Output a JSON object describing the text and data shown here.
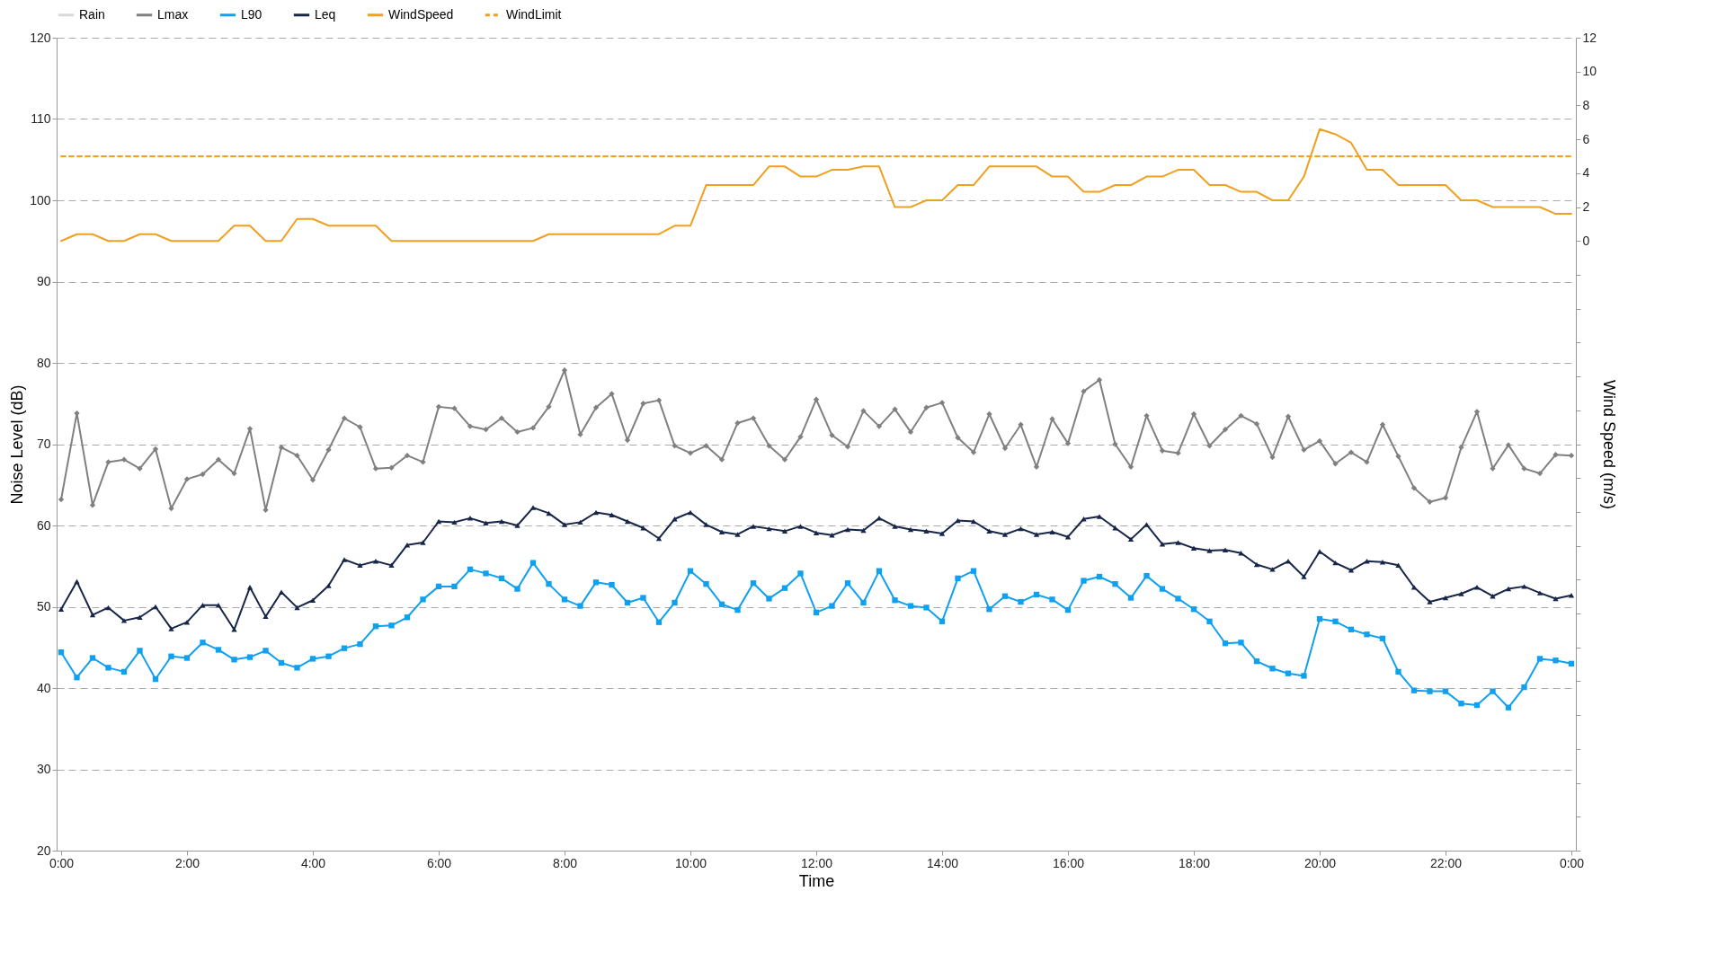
{
  "chart_data": {
    "type": "line",
    "xlabel": "Time",
    "ylabel": "Noise Level (dB)",
    "y2label": "Wind Speed (m/s)",
    "x": [
      0,
      0.25,
      0.5,
      0.75,
      1,
      1.25,
      1.5,
      1.75,
      2,
      2.25,
      2.5,
      2.75,
      3,
      3.25,
      3.5,
      3.75,
      4,
      4.25,
      4.5,
      4.75,
      5,
      5.25,
      5.5,
      5.75,
      6,
      6.25,
      6.5,
      6.75,
      7,
      7.25,
      7.5,
      7.75,
      8,
      8.25,
      8.5,
      8.75,
      9,
      9.25,
      9.5,
      9.75,
      10,
      10.25,
      10.5,
      10.75,
      11,
      11.25,
      11.5,
      11.75,
      12,
      12.25,
      12.5,
      12.75,
      13,
      13.25,
      13.5,
      13.75,
      14,
      14.25,
      14.5,
      14.75,
      15,
      15.25,
      15.5,
      15.75,
      16,
      16.25,
      16.5,
      16.75,
      17,
      17.25,
      17.5,
      17.75,
      18,
      18.25,
      18.5,
      18.75,
      19,
      19.25,
      19.5,
      19.75,
      20,
      20.25,
      20.5,
      20.75,
      21,
      21.25,
      21.5,
      21.75,
      22,
      22.25,
      22.5,
      22.75,
      23,
      23.25,
      23.5,
      23.75,
      24
    ],
    "xlim": [
      0,
      24
    ],
    "xticks": [
      {
        "value": 0,
        "label": "0:00"
      },
      {
        "value": 2,
        "label": "2:00"
      },
      {
        "value": 4,
        "label": "4:00"
      },
      {
        "value": 6,
        "label": "6:00"
      },
      {
        "value": 8,
        "label": "8:00"
      },
      {
        "value": 10,
        "label": "10:00"
      },
      {
        "value": 12,
        "label": "12:00"
      },
      {
        "value": 14,
        "label": "14:00"
      },
      {
        "value": 16,
        "label": "16:00"
      },
      {
        "value": 18,
        "label": "18:00"
      },
      {
        "value": 20,
        "label": "20:00"
      },
      {
        "value": 22,
        "label": "22:00"
      },
      {
        "value": 24,
        "label": "0:00"
      }
    ],
    "ylim": [
      20,
      120
    ],
    "yticks": [
      20,
      30,
      40,
      50,
      60,
      70,
      80,
      90,
      100,
      110,
      120
    ],
    "y2lim": [
      -36,
      12
    ],
    "y2ticks": [
      {
        "value": -36,
        "label": null
      },
      {
        "value": -34,
        "label": null
      },
      {
        "value": -32,
        "label": null
      },
      {
        "value": -30,
        "label": null
      },
      {
        "value": -28,
        "label": null
      },
      {
        "value": -26,
        "label": null
      },
      {
        "value": -24,
        "label": null
      },
      {
        "value": -22,
        "label": null
      },
      {
        "value": -20,
        "label": null
      },
      {
        "value": -18,
        "label": null
      },
      {
        "value": -16,
        "label": null
      },
      {
        "value": -14,
        "label": null
      },
      {
        "value": -12,
        "label": null
      },
      {
        "value": -10,
        "label": null
      },
      {
        "value": -8,
        "label": null
      },
      {
        "value": -6,
        "label": null
      },
      {
        "value": -4,
        "label": null
      },
      {
        "value": -2,
        "label": null
      },
      0,
      2,
      4,
      6,
      8,
      10,
      12
    ],
    "grid": "y",
    "legend": "top",
    "series": [
      {
        "name": "Rain",
        "type": "bar",
        "axis": "y2",
        "color": "#d9d9d9",
        "values": [
          null,
          null,
          null,
          null,
          null,
          null,
          null,
          null,
          null,
          null,
          null,
          null,
          null,
          null,
          null,
          null,
          null,
          null,
          null,
          null,
          null,
          null,
          null,
          null,
          null,
          null,
          null,
          null,
          null,
          null,
          null,
          null,
          null,
          null,
          null,
          null,
          null,
          null,
          null,
          null,
          null,
          null,
          null,
          null,
          null,
          null,
          null,
          null,
          null,
          null,
          null,
          null,
          null,
          null,
          null,
          null,
          null,
          null,
          null,
          null,
          null,
          null,
          null,
          null,
          null,
          null,
          null,
          null,
          null,
          null,
          null,
          null,
          null,
          null,
          null,
          null,
          null,
          null,
          null,
          null,
          null,
          null,
          null,
          null,
          null,
          null,
          null,
          null,
          null,
          null,
          null,
          null,
          null,
          null,
          null,
          null,
          null
        ]
      },
      {
        "name": "Lmax",
        "marker": "diamond",
        "color": "#808080",
        "values": [
          63.2,
          73.8,
          62.5,
          67.8,
          68.1,
          67.0,
          69.4,
          62.1,
          65.7,
          66.3,
          68.1,
          66.4,
          71.9,
          61.9,
          69.6,
          68.6,
          65.6,
          69.3,
          73.2,
          72.1,
          67.0,
          67.1,
          68.6,
          67.8,
          74.6,
          74.4,
          72.2,
          71.8,
          73.2,
          71.5,
          72.0,
          74.6,
          79.1,
          71.2,
          74.5,
          76.2,
          70.5,
          75.0,
          75.4,
          69.8,
          68.9,
          69.8,
          68.1,
          72.6,
          73.2,
          69.8,
          68.1,
          70.9,
          75.5,
          71.1,
          69.7,
          74.1,
          72.2,
          74.3,
          71.5,
          74.5,
          75.1,
          70.8,
          69.0,
          73.7,
          69.5,
          72.4,
          67.2,
          73.1,
          70.1,
          76.5,
          77.9,
          70.0,
          67.2,
          73.5,
          69.2,
          68.9,
          73.7,
          69.8,
          71.8,
          73.5,
          72.5,
          68.4,
          73.4,
          69.3,
          70.4,
          67.6,
          69.0,
          67.8,
          72.4,
          68.5,
          64.6,
          62.9,
          63.4,
          69.6,
          74.0,
          67.0,
          69.9,
          67.0,
          66.4,
          68.7,
          68.6
        ]
      },
      {
        "name": "L90",
        "marker": "square",
        "color": "#0fa0f0",
        "values": [
          44.4,
          41.3,
          43.7,
          42.5,
          42.0,
          44.6,
          41.1,
          43.9,
          43.7,
          45.6,
          44.7,
          43.5,
          43.8,
          44.6,
          43.1,
          42.5,
          43.6,
          43.9,
          44.9,
          45.4,
          47.6,
          47.7,
          48.7,
          50.9,
          52.5,
          52.5,
          54.6,
          54.1,
          53.5,
          52.2,
          55.4,
          52.8,
          50.9,
          50.1,
          53.0,
          52.7,
          50.5,
          51.1,
          48.1,
          50.5,
          54.4,
          52.8,
          50.3,
          49.6,
          52.9,
          51.0,
          52.3,
          54.1,
          49.3,
          50.1,
          52.9,
          50.5,
          54.4,
          50.8,
          50.1,
          49.9,
          48.2,
          53.5,
          54.4,
          49.7,
          51.3,
          50.6,
          51.5,
          50.9,
          49.6,
          53.2,
          53.7,
          52.8,
          51.1,
          53.8,
          52.2,
          51.0,
          49.7,
          48.2,
          45.5,
          45.6,
          43.3,
          42.4,
          41.8,
          41.5,
          48.5,
          48.2,
          47.2,
          46.6,
          46.1,
          42.0,
          39.7,
          39.6,
          39.6,
          38.1,
          37.9,
          39.6,
          37.6,
          40.1,
          43.6,
          43.4,
          43.0
        ]
      },
      {
        "name": "Leq",
        "marker": "triangle",
        "color": "#172649",
        "values": [
          49.7,
          53.1,
          49.0,
          49.9,
          48.3,
          48.7,
          50.0,
          47.3,
          48.1,
          50.2,
          50.2,
          47.2,
          52.4,
          48.8,
          51.8,
          49.9,
          50.8,
          52.6,
          55.8,
          55.1,
          55.6,
          55.1,
          57.6,
          57.9,
          60.5,
          60.4,
          60.9,
          60.3,
          60.5,
          60.0,
          62.2,
          61.5,
          60.1,
          60.4,
          61.6,
          61.3,
          60.5,
          59.7,
          58.4,
          60.8,
          61.6,
          60.1,
          59.2,
          58.9,
          59.9,
          59.6,
          59.3,
          59.9,
          59.1,
          58.8,
          59.5,
          59.4,
          60.9,
          59.9,
          59.5,
          59.3,
          59.0,
          60.6,
          60.5,
          59.3,
          58.9,
          59.6,
          58.9,
          59.2,
          58.6,
          60.8,
          61.1,
          59.7,
          58.3,
          60.1,
          57.7,
          57.9,
          57.2,
          56.9,
          57.0,
          56.6,
          55.2,
          54.6,
          55.6,
          53.7,
          56.8,
          55.4,
          54.5,
          55.6,
          55.5,
          55.1,
          52.4,
          50.6,
          51.1,
          51.6,
          52.4,
          51.3,
          52.2,
          52.5,
          51.7,
          51.0,
          51.4
        ]
      },
      {
        "name": "WindSpeed",
        "axis": "y2",
        "color": "#f0a020",
        "values": [
          0,
          0.4,
          0.4,
          0,
          0,
          0.4,
          0.4,
          0,
          0,
          0,
          0,
          0.9,
          0.9,
          0,
          0,
          1.3,
          1.3,
          0.9,
          0.9,
          0.9,
          0.9,
          0,
          0,
          0,
          0,
          0,
          0,
          0,
          0,
          0,
          0,
          0.4,
          0.4,
          0.4,
          0.4,
          0.4,
          0.4,
          0.4,
          0.4,
          0.9,
          0.9,
          3.3,
          3.3,
          3.3,
          3.3,
          4.4,
          4.4,
          3.8,
          3.8,
          4.2,
          4.2,
          4.4,
          4.4,
          2.0,
          2.0,
          2.4,
          2.4,
          3.3,
          3.3,
          4.4,
          4.4,
          4.4,
          4.4,
          3.8,
          3.8,
          2.9,
          2.9,
          3.3,
          3.3,
          3.8,
          3.8,
          4.2,
          4.2,
          3.3,
          3.3,
          2.9,
          2.9,
          2.4,
          2.4,
          3.8,
          6.6,
          6.3,
          5.8,
          4.2,
          4.2,
          3.3,
          3.3,
          3.3,
          3.3,
          2.4,
          2.4,
          2.0,
          2.0,
          2.0,
          2.0,
          1.6,
          1.6
        ]
      },
      {
        "name": "WindLimit",
        "axis": "y2",
        "line_style": "dashed",
        "color": "#f0a020",
        "x": [
          0,
          24
        ],
        "values": [
          5,
          5
        ]
      }
    ]
  }
}
